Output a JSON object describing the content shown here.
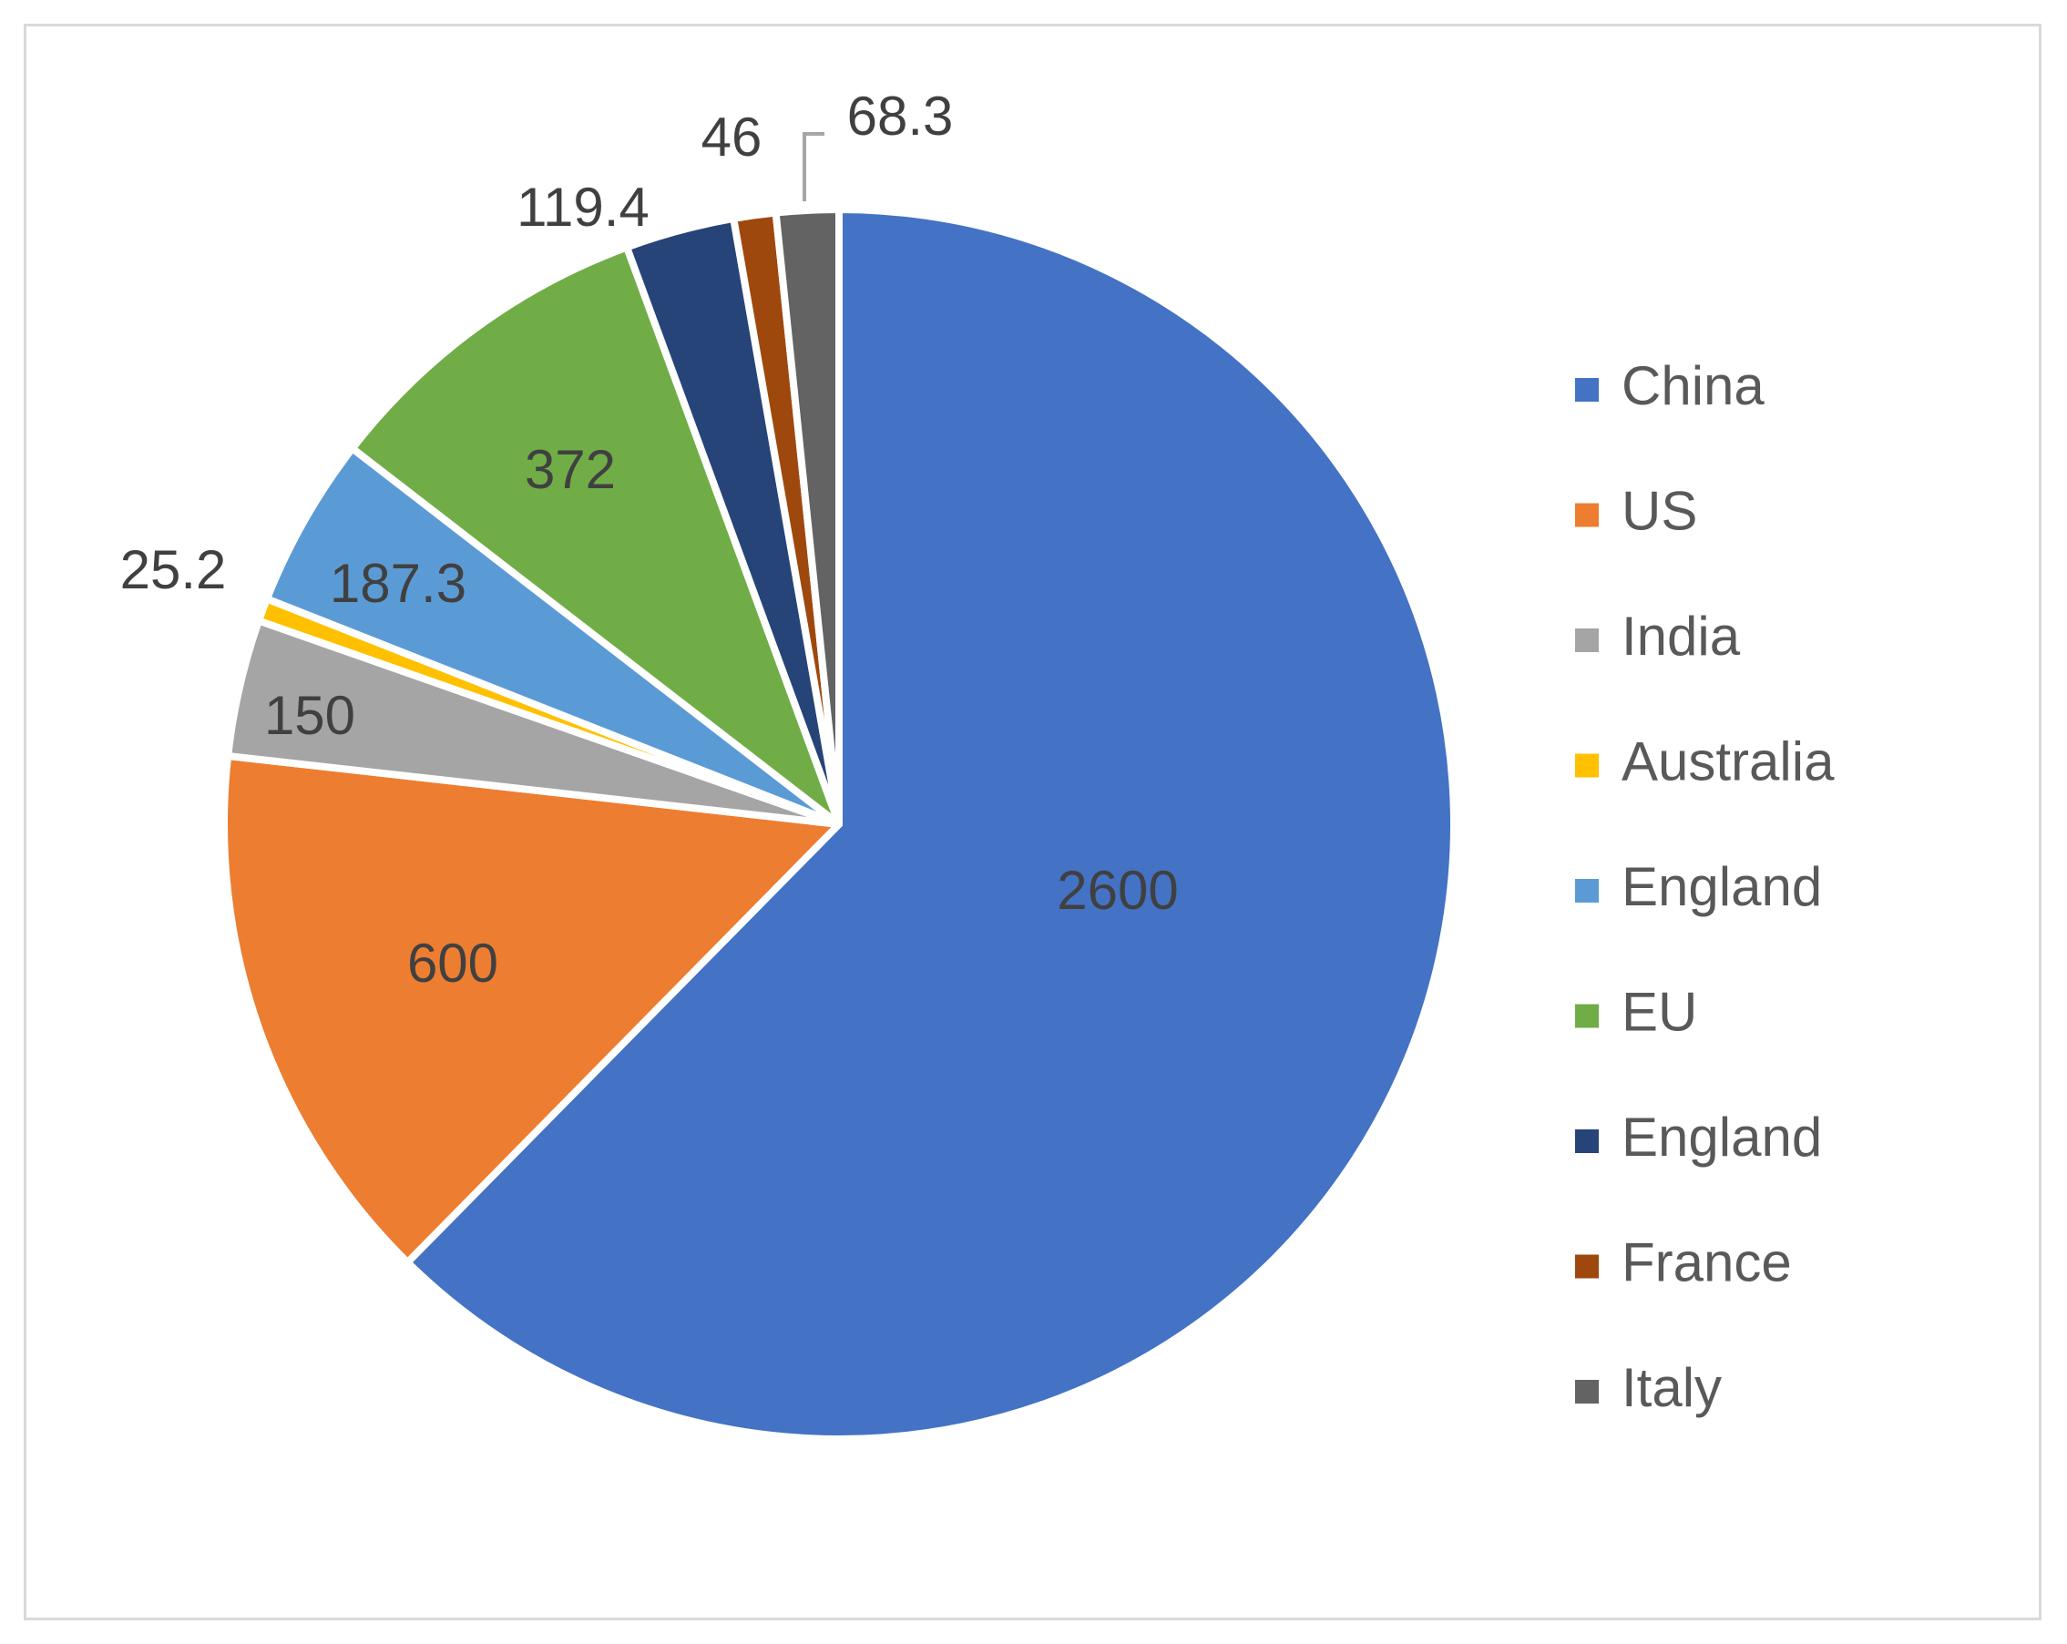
{
  "chart_data": {
    "type": "pie",
    "title": "",
    "slices": [
      {
        "label": "China",
        "value": 2600,
        "value_label": "2600",
        "color": "#4472C4"
      },
      {
        "label": "US",
        "value": 600,
        "value_label": "600",
        "color": "#ED7D31"
      },
      {
        "label": "India",
        "value": 150,
        "value_label": "150",
        "color": "#A5A5A5"
      },
      {
        "label": "Australia",
        "value": 25.2,
        "value_label": "25.2",
        "color": "#FFC000"
      },
      {
        "label": "England",
        "value": 187.3,
        "value_label": "187.3",
        "color": "#5B9BD5"
      },
      {
        "label": "EU",
        "value": 372,
        "value_label": "372",
        "color": "#70AD47"
      },
      {
        "label": "England",
        "value": 119.4,
        "value_label": "119.4",
        "color": "#264478"
      },
      {
        "label": "France",
        "value": 46,
        "value_label": "46",
        "color": "#9E480E"
      },
      {
        "label": "Italy",
        "value": 68.3,
        "value_label": "68.3",
        "color": "#636363"
      }
    ],
    "start_angle": "12 o'clock",
    "direction": "clockwise",
    "legend_position": "right"
  }
}
